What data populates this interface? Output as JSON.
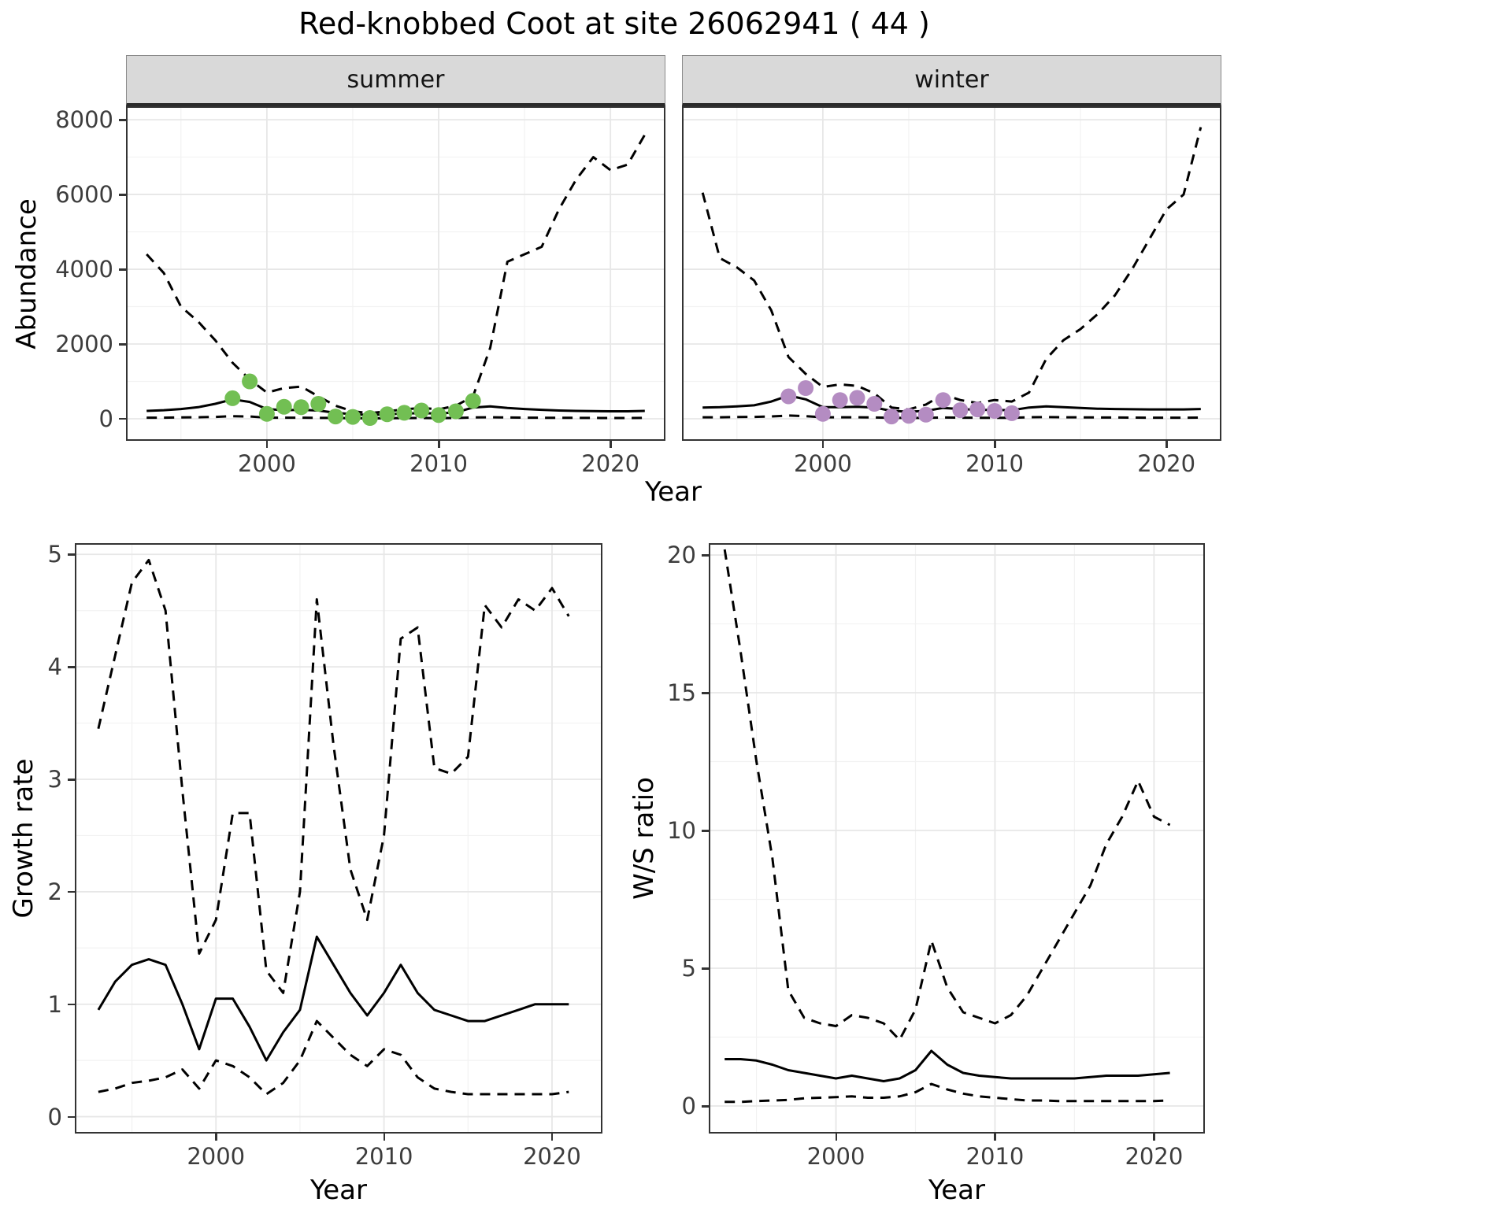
{
  "title": "Red-knobbed Coot at site 26062941 ( 44 )",
  "facets": {
    "summer": "summer",
    "winter": "winter"
  },
  "axis_labels": {
    "abundance": "Abundance",
    "year": "Year",
    "growth_rate": "Growth rate",
    "ws_ratio": "W/S ratio"
  },
  "colors": {
    "line": "#000000",
    "summer_points": "#72bf53",
    "winter_points": "#b48cc2",
    "strip_bg": "#d9d9d9",
    "grid_major": "#e7e7e7",
    "grid_minor": "#f2f2f2",
    "panel_border": "#333333"
  },
  "chart_data": [
    {
      "id": "abundance_summer",
      "type": "line",
      "facet": "summer",
      "xlabel": "Year",
      "ylabel": "Abundance",
      "xlim": [
        1991.8,
        2023.2
      ],
      "ylim": [
        -590,
        8360
      ],
      "xticks": [
        2000,
        2010,
        2020
      ],
      "yticks": [
        0,
        2000,
        4000,
        6000,
        8000
      ],
      "x": [
        1993,
        1994,
        1995,
        1996,
        1997,
        1998,
        1999,
        2000,
        2001,
        2002,
        2003,
        2004,
        2005,
        2006,
        2007,
        2008,
        2009,
        2010,
        2011,
        2012,
        2013,
        2014,
        2015,
        2016,
        2017,
        2018,
        2019,
        2020,
        2021,
        2022
      ],
      "series": [
        {
          "name": "upper_ci",
          "style": "dashed",
          "values": [
            4400,
            3900,
            3000,
            2600,
            2100,
            1500,
            1050,
            700,
            820,
            860,
            600,
            350,
            200,
            150,
            200,
            250,
            290,
            250,
            350,
            600,
            1900,
            4200,
            4400,
            4600,
            5600,
            6400,
            7000,
            6650,
            6800,
            7600
          ]
        },
        {
          "name": "median",
          "style": "solid",
          "values": [
            210,
            230,
            260,
            310,
            400,
            520,
            450,
            260,
            230,
            240,
            220,
            160,
            120,
            100,
            120,
            140,
            150,
            140,
            170,
            300,
            330,
            290,
            260,
            240,
            220,
            210,
            205,
            200,
            200,
            210
          ]
        },
        {
          "name": "lower_ci",
          "style": "dashed",
          "values": [
            30,
            30,
            35,
            40,
            50,
            70,
            60,
            30,
            30,
            30,
            25,
            20,
            15,
            12,
            15,
            18,
            20,
            18,
            20,
            35,
            40,
            35,
            30,
            28,
            25,
            25,
            22,
            20,
            20,
            22
          ]
        }
      ],
      "points": {
        "name": "observed_counts_summer",
        "color": "#72bf53",
        "x": [
          1998,
          1999,
          2000,
          2001,
          2002,
          2003,
          2004,
          2005,
          2006,
          2007,
          2008,
          2009,
          2010,
          2011,
          2012
        ],
        "y": [
          550,
          1000,
          130,
          320,
          310,
          400,
          60,
          50,
          20,
          120,
          160,
          220,
          100,
          200,
          480
        ]
      }
    },
    {
      "id": "abundance_winter",
      "type": "line",
      "facet": "winter",
      "xlabel": "Year",
      "ylabel": "Abundance",
      "xlim": [
        1991.8,
        2023.2
      ],
      "ylim": [
        -590,
        8360
      ],
      "xticks": [
        2000,
        2010,
        2020
      ],
      "yticks": [
        0,
        2000,
        4000,
        6000,
        8000
      ],
      "x": [
        1993,
        1994,
        1995,
        1996,
        1997,
        1998,
        1999,
        2000,
        2001,
        2002,
        2003,
        2004,
        2005,
        2006,
        2007,
        2008,
        2009,
        2010,
        2011,
        2012,
        2013,
        2014,
        2015,
        2016,
        2017,
        2018,
        2019,
        2020,
        2021,
        2022
      ],
      "series": [
        {
          "name": "upper_ci",
          "style": "dashed",
          "values": [
            6050,
            4300,
            4050,
            3700,
            2900,
            1650,
            1200,
            850,
            920,
            880,
            680,
            300,
            250,
            380,
            650,
            500,
            420,
            500,
            460,
            700,
            1600,
            2100,
            2400,
            2800,
            3300,
            4000,
            4800,
            5600,
            6000,
            7800
          ]
        },
        {
          "name": "median",
          "style": "solid",
          "values": [
            300,
            310,
            330,
            360,
            460,
            620,
            520,
            310,
            310,
            320,
            300,
            210,
            190,
            210,
            290,
            260,
            240,
            235,
            230,
            300,
            330,
            310,
            290,
            270,
            260,
            255,
            250,
            250,
            250,
            260
          ]
        },
        {
          "name": "lower_ci",
          "style": "dashed",
          "values": [
            40,
            40,
            45,
            50,
            60,
            85,
            70,
            40,
            40,
            40,
            35,
            25,
            22,
            25,
            35,
            30,
            28,
            28,
            27,
            40,
            45,
            40,
            38,
            35,
            33,
            32,
            30,
            30,
            30,
            32
          ]
        }
      ],
      "points": {
        "name": "observed_counts_winter",
        "color": "#b48cc2",
        "x": [
          1998,
          1999,
          2000,
          2001,
          2002,
          2003,
          2004,
          2005,
          2006,
          2007,
          2008,
          2009,
          2010,
          2011
        ],
        "y": [
          600,
          820,
          130,
          500,
          560,
          400,
          60,
          80,
          110,
          500,
          230,
          250,
          210,
          150
        ]
      }
    },
    {
      "id": "growth_rate",
      "type": "line",
      "facet": null,
      "xlabel": "Year",
      "ylabel": "Growth rate",
      "xlim": [
        1991.6,
        2023.0
      ],
      "ylim": [
        -0.15,
        5.1
      ],
      "xticks": [
        2000,
        2010,
        2020
      ],
      "yticks": [
        0,
        1,
        2,
        3,
        4,
        5
      ],
      "x": [
        1993,
        1994,
        1995,
        1996,
        1997,
        1998,
        1999,
        2000,
        2001,
        2002,
        2003,
        2004,
        2005,
        2006,
        2007,
        2008,
        2009,
        2010,
        2011,
        2012,
        2013,
        2014,
        2015,
        2016,
        2017,
        2018,
        2019,
        2020,
        2021
      ],
      "series": [
        {
          "name": "upper_ci",
          "style": "dashed",
          "values": [
            3.45,
            4.1,
            4.75,
            4.95,
            4.5,
            2.9,
            1.45,
            1.75,
            2.7,
            2.7,
            1.3,
            1.1,
            2.0,
            4.6,
            3.3,
            2.2,
            1.75,
            2.5,
            4.25,
            4.35,
            3.1,
            3.05,
            3.2,
            4.55,
            4.35,
            4.6,
            4.5,
            4.7,
            4.45
          ]
        },
        {
          "name": "median",
          "style": "solid",
          "values": [
            0.95,
            1.2,
            1.35,
            1.4,
            1.35,
            1.0,
            0.6,
            1.05,
            1.05,
            0.8,
            0.5,
            0.75,
            0.95,
            1.6,
            1.35,
            1.1,
            0.9,
            1.1,
            1.35,
            1.1,
            0.95,
            0.9,
            0.85,
            0.85,
            0.9,
            0.95,
            1.0,
            1.0,
            1.0
          ]
        },
        {
          "name": "lower_ci",
          "style": "dashed",
          "values": [
            0.22,
            0.25,
            0.3,
            0.32,
            0.35,
            0.42,
            0.25,
            0.5,
            0.45,
            0.35,
            0.2,
            0.3,
            0.5,
            0.85,
            0.7,
            0.55,
            0.45,
            0.6,
            0.55,
            0.35,
            0.25,
            0.22,
            0.2,
            0.2,
            0.2,
            0.2,
            0.2,
            0.2,
            0.22
          ]
        }
      ],
      "points": null
    },
    {
      "id": "ws_ratio",
      "type": "line",
      "facet": null,
      "xlabel": "Year",
      "ylabel": "W/S ratio",
      "xlim": [
        1992.0,
        2023.2
      ],
      "ylim": [
        -1.0,
        20.43
      ],
      "xticks": [
        2000,
        2010,
        2020
      ],
      "yticks": [
        0,
        5,
        10,
        15,
        20
      ],
      "x": [
        1993,
        1994,
        1995,
        1996,
        1997,
        1998,
        1999,
        2000,
        2001,
        2002,
        2003,
        2004,
        2005,
        2006,
        2007,
        2008,
        2009,
        2010,
        2011,
        2012,
        2013,
        2014,
        2015,
        2016,
        2017,
        2018,
        2019,
        2020,
        2021
      ],
      "series": [
        {
          "name": "upper_ci",
          "style": "dashed",
          "values": [
            20.2,
            16.5,
            12.5,
            9.0,
            4.2,
            3.2,
            3.0,
            2.9,
            3.3,
            3.2,
            3.0,
            2.4,
            3.5,
            6.0,
            4.3,
            3.4,
            3.2,
            3.0,
            3.3,
            4.0,
            5.0,
            6.0,
            7.0,
            8.0,
            9.5,
            10.5,
            11.8,
            10.5,
            10.2
          ]
        },
        {
          "name": "median",
          "style": "solid",
          "values": [
            1.7,
            1.7,
            1.65,
            1.5,
            1.3,
            1.2,
            1.1,
            1.0,
            1.1,
            1.0,
            0.9,
            1.0,
            1.3,
            2.0,
            1.5,
            1.2,
            1.1,
            1.05,
            1.0,
            1.0,
            1.0,
            1.0,
            1.0,
            1.05,
            1.1,
            1.1,
            1.1,
            1.15,
            1.2
          ]
        },
        {
          "name": "lower_ci",
          "style": "dashed",
          "values": [
            0.15,
            0.15,
            0.18,
            0.2,
            0.22,
            0.28,
            0.3,
            0.32,
            0.35,
            0.3,
            0.3,
            0.35,
            0.5,
            0.8,
            0.6,
            0.45,
            0.35,
            0.3,
            0.25,
            0.2,
            0.2,
            0.18,
            0.18,
            0.18,
            0.18,
            0.18,
            0.18,
            0.18,
            0.2
          ]
        }
      ],
      "points": null
    }
  ]
}
